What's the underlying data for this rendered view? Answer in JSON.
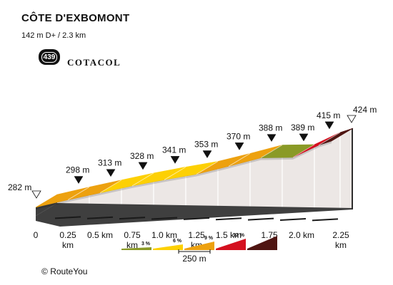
{
  "header": {
    "title": "CÔTE D'EXBOMONT",
    "subtitle": "142 m D+ / 2.3 km",
    "badge_number": "439",
    "brand": "COTACOL"
  },
  "footer": {
    "copyright_symbol": "©",
    "copyright_text": "RouteYou"
  },
  "colors": {
    "grade_0_3": "#8a9a26",
    "grade_3_6": "#fdd003",
    "grade_6_9": "#eda10f",
    "grade_9_12": "#d4101f",
    "grade_12_plus": "#4f1512",
    "wall": "#ece7e5",
    "base": "#3f3f3f"
  },
  "chart_data": {
    "type": "area",
    "title": "CÔTE D'EXBOMONT",
    "x_unit": "km",
    "y_unit": "m",
    "segments": [
      {
        "start_km": 0.0,
        "end_km": 0.25,
        "start_elev_m": 282,
        "end_elev_m": 298,
        "color": "#eda10f"
      },
      {
        "start_km": 0.25,
        "end_km": 0.5,
        "start_elev_m": 298,
        "end_elev_m": 313,
        "color": "#eda10f"
      },
      {
        "start_km": 0.5,
        "end_km": 0.75,
        "start_elev_m": 313,
        "end_elev_m": 328,
        "color": "#fdd003"
      },
      {
        "start_km": 0.75,
        "end_km": 1.0,
        "start_elev_m": 328,
        "end_elev_m": 341,
        "color": "#fdd003"
      },
      {
        "start_km": 1.0,
        "end_km": 1.25,
        "start_elev_m": 341,
        "end_elev_m": 353,
        "color": "#fdd003"
      },
      {
        "start_km": 1.25,
        "end_km": 1.5,
        "start_elev_m": 353,
        "end_elev_m": 370,
        "color": "#eda10f"
      },
      {
        "start_km": 1.5,
        "end_km": 1.75,
        "start_elev_m": 370,
        "end_elev_m": 388,
        "color": "#eda10f"
      },
      {
        "start_km": 1.75,
        "end_km": 2.0,
        "start_elev_m": 388,
        "end_elev_m": 389,
        "color": "#8a9a26"
      },
      {
        "start_km": 2.0,
        "end_km": 2.2,
        "start_elev_m": 389,
        "end_elev_m": 415,
        "color": "#d4101f"
      },
      {
        "start_km": 2.2,
        "end_km": 2.3,
        "start_elev_m": 415,
        "end_elev_m": 424,
        "color": "#4f1512"
      }
    ],
    "elevation_labels": [
      {
        "km": 0.0,
        "text": "282 m",
        "marker": "open"
      },
      {
        "km": 0.25,
        "text": "298 m",
        "marker": "filled"
      },
      {
        "km": 0.5,
        "text": "313 m",
        "marker": "filled"
      },
      {
        "km": 0.75,
        "text": "328 m",
        "marker": "filled"
      },
      {
        "km": 1.0,
        "text": "341 m",
        "marker": "filled"
      },
      {
        "km": 1.25,
        "text": "353 m",
        "marker": "filled"
      },
      {
        "km": 1.5,
        "text": "370 m",
        "marker": "filled"
      },
      {
        "km": 1.75,
        "text": "388 m",
        "marker": "filled"
      },
      {
        "km": 2.0,
        "text": "389 m",
        "marker": "filled"
      },
      {
        "km": 2.2,
        "text": "415 m",
        "marker": "filled"
      },
      {
        "km": 2.3,
        "text": "424 m",
        "marker": "open"
      }
    ],
    "x_ticks": [
      {
        "km": 0.0,
        "lines": [
          "0"
        ]
      },
      {
        "km": 0.25,
        "lines": [
          "0.25",
          "km"
        ]
      },
      {
        "km": 0.5,
        "lines": [
          "0.5 km"
        ]
      },
      {
        "km": 0.75,
        "lines": [
          "0.75",
          "km"
        ]
      },
      {
        "km": 1.0,
        "lines": [
          "1.0 km"
        ]
      },
      {
        "km": 1.25,
        "lines": [
          "1.25",
          "km"
        ]
      },
      {
        "km": 1.5,
        "lines": [
          "1.5 km"
        ]
      },
      {
        "km": 1.75,
        "lines": [
          "1.75",
          "km"
        ]
      },
      {
        "km": 2.0,
        "lines": [
          "2.0 km"
        ]
      },
      {
        "km": 2.25,
        "lines": [
          "2.25",
          "km"
        ]
      }
    ],
    "legend": [
      {
        "label": "3 %",
        "color": "#8a9a26"
      },
      {
        "label": "6 %",
        "color": "#fdd003"
      },
      {
        "label": "9 %",
        "color": "#eda10f"
      },
      {
        "label": "12 %",
        "color": "#d4101f"
      },
      {
        "label": "",
        "color": "#4f1512"
      }
    ],
    "scale_label": "250 m",
    "grid": false
  }
}
